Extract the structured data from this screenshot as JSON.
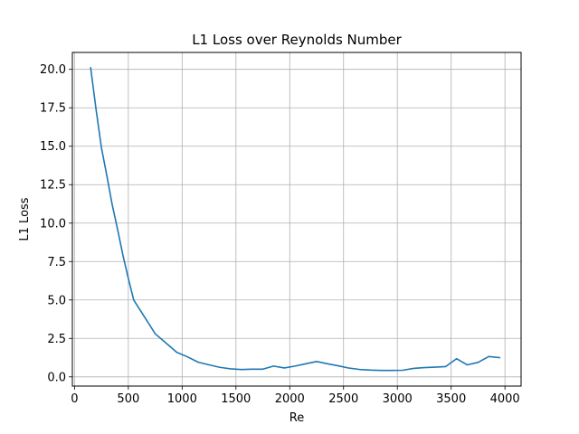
{
  "chart_data": {
    "type": "line",
    "title": "L1 Loss over Reynolds Number",
    "xlabel": "Re",
    "ylabel": "L1 Loss",
    "xlim": [
      -20,
      4150
    ],
    "ylim": [
      -0.6,
      21.1
    ],
    "xticks": [
      0,
      500,
      1000,
      1500,
      2000,
      2500,
      3000,
      3500,
      4000
    ],
    "yticks": [
      0.0,
      2.5,
      5.0,
      7.5,
      10.0,
      12.5,
      15.0,
      17.5,
      20.0
    ],
    "xtick_labels": [
      "0",
      "500",
      "1000",
      "1500",
      "2000",
      "2500",
      "3000",
      "3500",
      "4000"
    ],
    "ytick_labels": [
      "0.0",
      "2.5",
      "5.0",
      "7.5",
      "10.0",
      "12.5",
      "15.0",
      "17.5",
      "20.0"
    ],
    "grid": true,
    "color": "#1f77b4",
    "series": [
      {
        "name": "",
        "x": [
          150,
          200,
          250,
          300,
          350,
          400,
          450,
          500,
          550,
          650,
          750,
          850,
          950,
          1050,
          1150,
          1250,
          1350,
          1450,
          1550,
          1650,
          1750,
          1850,
          1950,
          2050,
          2150,
          2250,
          2350,
          2450,
          2550,
          2650,
          2750,
          2850,
          2950,
          3050,
          3150,
          3250,
          3350,
          3450,
          3550,
          3650,
          3750,
          3850,
          3950
        ],
        "y": [
          20.1,
          17.4,
          14.9,
          13.1,
          11.2,
          9.6,
          7.9,
          6.4,
          5.0,
          3.9,
          2.8,
          2.2,
          1.6,
          1.3,
          0.95,
          0.78,
          0.62,
          0.52,
          0.48,
          0.5,
          0.5,
          0.7,
          0.58,
          0.7,
          0.85,
          1.0,
          0.85,
          0.72,
          0.57,
          0.48,
          0.44,
          0.42,
          0.42,
          0.43,
          0.55,
          0.6,
          0.63,
          0.67,
          1.18,
          0.78,
          0.94,
          1.32,
          1.25
        ]
      }
    ]
  }
}
